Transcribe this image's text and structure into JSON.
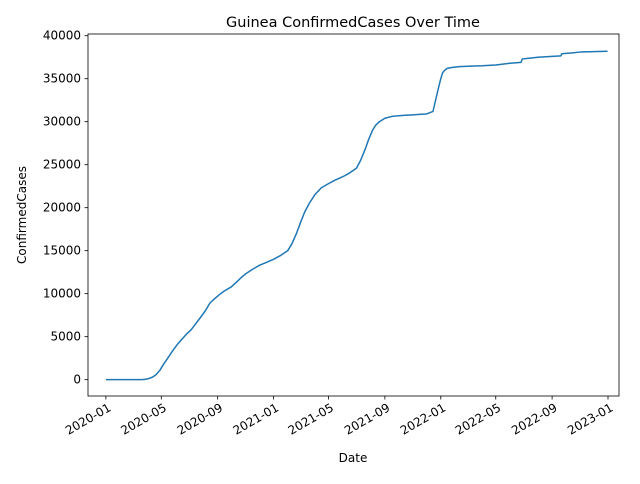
{
  "chart_data": {
    "type": "line",
    "title": "Guinea  ConfirmedCases Over Time",
    "xlabel": "Date",
    "ylabel": "ConfirmedCases",
    "xlim": [
      "2019-11-23",
      "2023-01-25"
    ],
    "ylim": [
      -1900,
      40200
    ],
    "x_ticks": [
      "2020-01-01",
      "2020-05-01",
      "2020-09-01",
      "2021-01-01",
      "2021-05-01",
      "2021-09-01",
      "2022-01-01",
      "2022-05-01",
      "2022-09-01",
      "2023-01-01"
    ],
    "x_tick_labels": [
      "2020-01",
      "2020-05",
      "2020-09",
      "2021-01",
      "2021-05",
      "2021-09",
      "2022-01",
      "2022-05",
      "2022-09",
      "2023-01"
    ],
    "y_ticks": [
      0,
      5000,
      10000,
      15000,
      20000,
      25000,
      30000,
      35000,
      40000
    ],
    "y_tick_labels": [
      "0",
      "5000",
      "10000",
      "15000",
      "20000",
      "25000",
      "30000",
      "35000",
      "40000"
    ],
    "grid": false,
    "colors": {
      "series": "#1f77b4"
    },
    "series": [
      {
        "x": [
          "2020-01-01",
          "2020-03-12",
          "2020-03-20",
          "2020-03-28",
          "2020-04-05",
          "2020-04-12",
          "2020-04-20",
          "2020-04-28",
          "2020-05-06",
          "2020-05-15",
          "2020-05-25",
          "2020-06-05",
          "2020-06-15",
          "2020-06-25",
          "2020-07-05",
          "2020-07-15",
          "2020-07-25",
          "2020-08-05",
          "2020-08-15",
          "2020-08-25",
          "2020-09-05",
          "2020-09-15",
          "2020-10-01",
          "2020-10-15",
          "2020-10-25",
          "2020-11-01",
          "2020-11-15",
          "2020-12-01",
          "2020-12-15",
          "2021-01-01",
          "2021-01-15",
          "2021-02-01",
          "2021-02-10",
          "2021-02-20",
          "2021-03-01",
          "2021-03-10",
          "2021-03-20",
          "2021-04-01",
          "2021-04-15",
          "2021-05-01",
          "2021-05-15",
          "2021-06-01",
          "2021-06-15",
          "2021-07-01",
          "2021-07-10",
          "2021-07-20",
          "2021-07-28",
          "2021-08-05",
          "2021-08-12",
          "2021-08-20",
          "2021-09-01",
          "2021-09-15",
          "2021-10-01",
          "2021-10-15",
          "2021-11-01",
          "2021-11-15",
          "2021-12-01",
          "2021-12-15",
          "2021-12-25",
          "2022-01-01",
          "2022-01-05",
          "2022-01-10",
          "2022-01-15",
          "2022-01-25",
          "2022-02-10",
          "2022-03-01",
          "2022-04-01",
          "2022-05-01",
          "2022-06-01",
          "2022-06-25",
          "2022-06-28",
          "2022-07-15",
          "2022-08-01",
          "2022-09-01",
          "2022-09-20",
          "2022-09-22",
          "2022-10-15",
          "2022-11-01",
          "2022-12-01",
          "2022-12-31"
        ],
        "y": [
          0,
          0,
          0,
          50,
          150,
          300,
          600,
          1100,
          1800,
          2500,
          3300,
          4100,
          4700,
          5300,
          5800,
          6500,
          7200,
          8000,
          8900,
          9400,
          9900,
          10300,
          10800,
          11500,
          12000,
          12300,
          12800,
          13300,
          13600,
          14000,
          14400,
          15000,
          15800,
          17000,
          18300,
          19500,
          20500,
          21500,
          22300,
          22800,
          23200,
          23600,
          24000,
          24600,
          25500,
          26800,
          28000,
          29000,
          29600,
          30000,
          30400,
          30600,
          30700,
          30750,
          30800,
          30850,
          30900,
          31200,
          33500,
          35000,
          35700,
          36000,
          36200,
          36300,
          36400,
          36450,
          36500,
          36600,
          36800,
          36900,
          37300,
          37400,
          37500,
          37600,
          37650,
          37900,
          38000,
          38100,
          38150,
          38200
        ]
      }
    ]
  }
}
